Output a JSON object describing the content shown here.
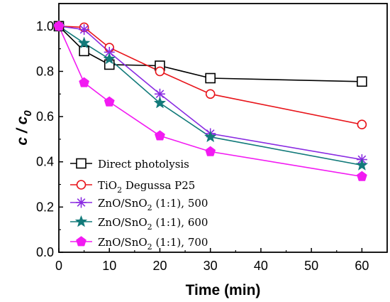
{
  "chart_data": {
    "type": "line",
    "xlabel": "Time (min)",
    "ylabel": "c / c0",
    "xlim": [
      0,
      65
    ],
    "ylim": [
      0.0,
      1.1
    ],
    "x_ticks": [
      0,
      10,
      20,
      30,
      40,
      50,
      60
    ],
    "y_ticks": [
      0.0,
      0.2,
      0.4,
      0.6,
      0.8,
      1.0
    ],
    "x_tick_labels": [
      "0",
      "10",
      "20",
      "30",
      "40",
      "50",
      "60"
    ],
    "y_tick_labels": [
      "0.0",
      "0.2",
      "0.4",
      "0.6",
      "0.8",
      "1.0"
    ],
    "legend_position": "lower-left",
    "grid": false,
    "series": [
      {
        "name": "Direct photolysis",
        "color": "#000000",
        "marker": "open-square",
        "x": [
          0,
          5,
          10,
          20,
          30,
          60
        ],
        "y": [
          1.0,
          0.89,
          0.83,
          0.825,
          0.77,
          0.755
        ]
      },
      {
        "name": "TiO2 Degussa P25",
        "color": "#e8141a",
        "marker": "open-circle",
        "x": [
          0,
          5,
          10,
          20,
          30,
          60
        ],
        "y": [
          1.0,
          0.995,
          0.905,
          0.8,
          0.7,
          0.565
        ]
      },
      {
        "name": "ZnO/SnO2 (1:1), 500",
        "color": "#8a2be2",
        "marker": "asterisk",
        "x": [
          0,
          5,
          10,
          20,
          30,
          60
        ],
        "y": [
          1.0,
          0.985,
          0.885,
          0.7,
          0.525,
          0.41
        ]
      },
      {
        "name": "ZnO/SnO2 (1:1), 600",
        "color": "#127a7a",
        "marker": "filled-star",
        "x": [
          0,
          5,
          10,
          20,
          30,
          60
        ],
        "y": [
          1.0,
          0.925,
          0.855,
          0.66,
          0.51,
          0.385
        ]
      },
      {
        "name": "ZnO/SnO2 (1:1), 700",
        "color": "#f21af2",
        "marker": "filled-pentagon",
        "x": [
          0,
          5,
          10,
          20,
          30,
          60
        ],
        "y": [
          1.0,
          0.75,
          0.665,
          0.515,
          0.445,
          0.335
        ]
      }
    ]
  },
  "legend": {
    "s0": {
      "text": "Direct photolysis"
    },
    "s1": {
      "pre": "TiO",
      "sub": "2",
      "post": " Degussa P25"
    },
    "s2": {
      "pre": "ZnO/SnO",
      "sub": "2",
      "post": " (1:1), 500"
    },
    "s3": {
      "pre": "ZnO/SnO",
      "sub": "2",
      "post": " (1:1), 600"
    },
    "s4": {
      "pre": "ZnO/SnO",
      "sub": "2",
      "post": " (1:1), 700"
    }
  },
  "axes": {
    "xlabel": "Time (min)",
    "ylabel": {
      "pre": "c / c",
      "sub": "0"
    }
  }
}
